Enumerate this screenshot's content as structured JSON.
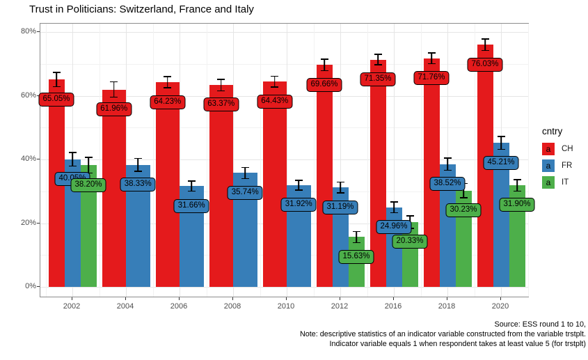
{
  "title": "Trust in Politicians: Switzerland, France and Italy",
  "legend": {
    "title": "cntry",
    "key_glyph": "a",
    "entries": [
      {
        "label": "CH",
        "color": "#E41A1C"
      },
      {
        "label": "FR",
        "color": "#377EB8"
      },
      {
        "label": "IT",
        "color": "#4DAF4A"
      }
    ]
  },
  "caption": {
    "lines": [
      "Source: ESS round 1 to 10,",
      "Note: descriptive statistics of an indicator variable constructed from the variable trstplt.",
      "Indicator variable equals 1 when respondent takes at least value 5 (for trstplt)"
    ]
  },
  "colors": {
    "background": "#FFFFFF",
    "panel_border": "#8C8C8C",
    "grid_major": "#E5E5E5",
    "grid_minor": "#F2F2F2",
    "axis_text": "#4D4D4D",
    "error_bar": "#000000"
  },
  "chart_data": {
    "type": "bar",
    "title": "Trust in Politicians: Switzerland, France and Italy",
    "categories": [
      "2002",
      "2004",
      "2006",
      "2008",
      "2010",
      "2012",
      "2016",
      "2018",
      "2020"
    ],
    "series": [
      {
        "name": "CH",
        "color": "#E41A1C",
        "values": [
          65.05,
          61.96,
          64.23,
          63.37,
          64.43,
          69.66,
          71.35,
          71.76,
          76.03
        ],
        "errors": [
          2.4,
          2.6,
          1.9,
          2.0,
          1.9,
          2.0,
          1.8,
          1.9,
          2.0
        ]
      },
      {
        "name": "FR",
        "color": "#377EB8",
        "values": [
          40.05,
          38.33,
          31.66,
          35.74,
          31.92,
          31.19,
          24.96,
          38.52,
          45.21
        ],
        "errors": [
          2.3,
          2.2,
          1.8,
          1.9,
          1.7,
          1.9,
          1.9,
          2.1,
          2.2
        ]
      },
      {
        "name": "IT",
        "color": "#4DAF4A",
        "values": [
          38.2,
          null,
          null,
          null,
          null,
          15.63,
          20.33,
          30.23,
          31.9
        ],
        "errors": [
          2.6,
          null,
          null,
          null,
          null,
          1.9,
          2.1,
          2.4,
          2.0
        ]
      }
    ],
    "value_label_format": "{value}%",
    "xlabel": "",
    "ylabel": "",
    "ylim": [
      0,
      80
    ],
    "y_ticks": [
      {
        "v": 0,
        "label": "0%"
      },
      {
        "v": 20,
        "label": "20%"
      },
      {
        "v": 40,
        "label": "40%"
      },
      {
        "v": 60,
        "label": "60%"
      },
      {
        "v": 80,
        "label": "80%"
      }
    ],
    "grid": "major+minor",
    "error_bars": true,
    "legend_position": "right"
  }
}
